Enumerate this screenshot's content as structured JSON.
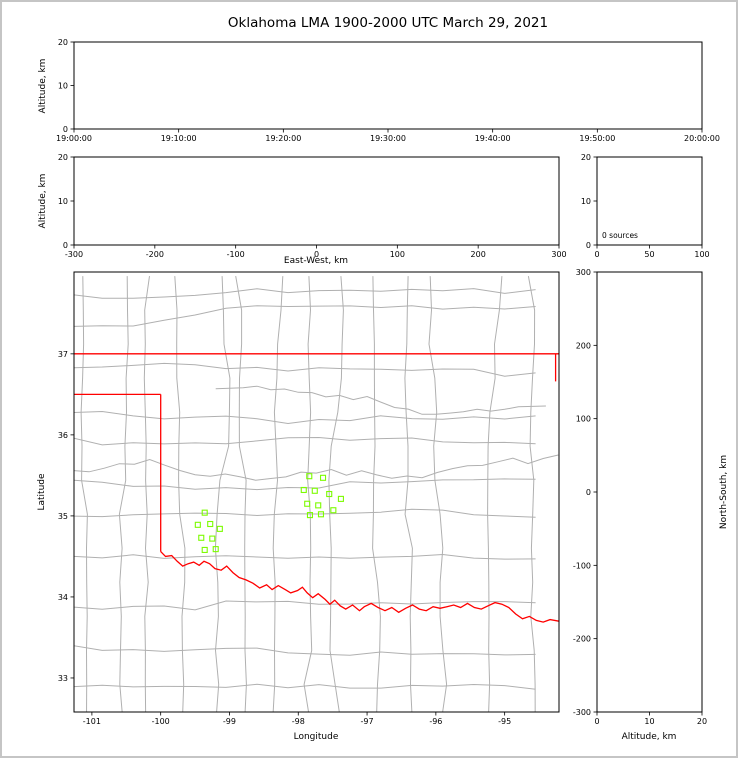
{
  "title": "Oklahoma LMA 1900-2000 UTC March 29, 2021",
  "colors": {
    "state_border": "#ff0000",
    "county_lines": "#b0b0b0",
    "station_marker": "#7cfc00",
    "axes": "#000000",
    "background": "#ffffff",
    "frame": "#c5c5c5"
  },
  "chart_data": [
    {
      "type": "scatter",
      "id": "time_altitude",
      "ylabel": "Altitude, km",
      "ylim": [
        0,
        20
      ],
      "yticks": [
        0,
        10,
        20
      ],
      "xticks_labels": [
        "19:00:00",
        "19:10:00",
        "19:20:00",
        "19:30:00",
        "19:40:00",
        "19:50:00",
        "20:00:00"
      ],
      "points": []
    },
    {
      "type": "scatter",
      "id": "eastwest_altitude",
      "xlabel": "East-West, km",
      "ylabel": "Altitude, km",
      "xlim": [
        -300,
        300
      ],
      "xticks": [
        -300,
        -200,
        -100,
        0,
        100,
        200,
        300
      ],
      "ylim": [
        0,
        20
      ],
      "yticks": [
        0,
        10,
        20
      ],
      "points": []
    },
    {
      "type": "histogram",
      "id": "altitude_histogram",
      "annotation": "0 sources",
      "xlim": [
        0,
        100
      ],
      "xticks": [
        0,
        50,
        100
      ],
      "ylim": [
        0,
        20
      ],
      "yticks": [
        0,
        10,
        20
      ],
      "values": []
    },
    {
      "type": "scatter",
      "id": "plan_view_map",
      "xlabel": "Longitude",
      "ylabel": "Latitude",
      "xlim": [
        -101.26,
        -94.21
      ],
      "xticks": [
        -101,
        -100,
        -99,
        -98,
        -97,
        -96,
        -95
      ],
      "ylim": [
        32.58,
        38.01
      ],
      "yticks": [
        33,
        34,
        35,
        36,
        37
      ],
      "stations_lonlat": [
        [
          -97.84,
          35.49
        ],
        [
          -97.64,
          35.47
        ],
        [
          -97.92,
          35.32
        ],
        [
          -97.76,
          35.31
        ],
        [
          -97.55,
          35.27
        ],
        [
          -97.38,
          35.21
        ],
        [
          -97.87,
          35.15
        ],
        [
          -97.71,
          35.13
        ],
        [
          -97.83,
          35.01
        ],
        [
          -97.67,
          35.02
        ],
        [
          -97.49,
          35.07
        ],
        [
          -99.36,
          35.04
        ],
        [
          -99.46,
          34.89
        ],
        [
          -99.28,
          34.9
        ],
        [
          -99.14,
          34.84
        ],
        [
          -99.41,
          34.73
        ],
        [
          -99.25,
          34.72
        ],
        [
          -99.36,
          34.58
        ],
        [
          -99.2,
          34.59
        ]
      ],
      "state_border_segments": [
        [
          [
            -101.26,
            37.0
          ],
          [
            -94.21,
            37.0
          ]
        ],
        [
          [
            -94.26,
            37.0
          ],
          [
            -94.26,
            36.66
          ]
        ],
        [
          [
            -101.26,
            36.5
          ],
          [
            -100.0,
            36.5
          ]
        ],
        [
          [
            -100.0,
            36.5
          ],
          [
            -100.0,
            34.56
          ]
        ],
        [
          [
            -100.0,
            34.56
          ],
          [
            -99.93,
            34.5
          ],
          [
            -99.84,
            34.51
          ],
          [
            -99.76,
            34.44
          ],
          [
            -99.68,
            34.38
          ],
          [
            -99.6,
            34.41
          ],
          [
            -99.52,
            34.43
          ],
          [
            -99.44,
            34.39
          ],
          [
            -99.37,
            34.44
          ],
          [
            -99.29,
            34.41
          ],
          [
            -99.21,
            34.35
          ],
          [
            -99.12,
            34.33
          ],
          [
            -99.04,
            34.38
          ],
          [
            -98.95,
            34.3
          ],
          [
            -98.86,
            34.24
          ],
          [
            -98.76,
            34.21
          ],
          [
            -98.66,
            34.17
          ],
          [
            -98.56,
            34.11
          ],
          [
            -98.46,
            34.15
          ],
          [
            -98.38,
            34.09
          ],
          [
            -98.29,
            34.14
          ],
          [
            -98.19,
            34.09
          ],
          [
            -98.11,
            34.05
          ],
          [
            -98.01,
            34.08
          ],
          [
            -97.94,
            34.12
          ],
          [
            -97.87,
            34.05
          ],
          [
            -97.79,
            33.99
          ],
          [
            -97.71,
            34.04
          ],
          [
            -97.61,
            33.97
          ],
          [
            -97.54,
            33.91
          ],
          [
            -97.47,
            33.96
          ],
          [
            -97.39,
            33.89
          ],
          [
            -97.31,
            33.85
          ],
          [
            -97.21,
            33.9
          ],
          [
            -97.11,
            33.83
          ],
          [
            -97.04,
            33.88
          ],
          [
            -96.94,
            33.92
          ],
          [
            -96.84,
            33.87
          ],
          [
            -96.74,
            33.83
          ],
          [
            -96.64,
            33.87
          ],
          [
            -96.54,
            33.81
          ],
          [
            -96.44,
            33.86
          ],
          [
            -96.34,
            33.9
          ],
          [
            -96.24,
            33.85
          ],
          [
            -96.14,
            33.83
          ],
          [
            -96.04,
            33.88
          ],
          [
            -95.94,
            33.86
          ],
          [
            -95.84,
            33.88
          ],
          [
            -95.74,
            33.9
          ],
          [
            -95.64,
            33.87
          ],
          [
            -95.54,
            33.92
          ],
          [
            -95.44,
            33.87
          ],
          [
            -95.34,
            33.85
          ],
          [
            -95.24,
            33.89
          ],
          [
            -95.14,
            33.93
          ],
          [
            -95.04,
            33.91
          ],
          [
            -94.94,
            33.87
          ],
          [
            -94.84,
            33.79
          ],
          [
            -94.74,
            33.73
          ],
          [
            -94.64,
            33.76
          ],
          [
            -94.54,
            33.71
          ],
          [
            -94.44,
            33.69
          ],
          [
            -94.34,
            33.72
          ],
          [
            -94.21,
            33.7
          ]
        ]
      ]
    },
    {
      "type": "scatter",
      "id": "northsouth_altitude",
      "xlabel": "Altitude, km",
      "ylabel": "North-South, km",
      "xlim": [
        0,
        20
      ],
      "xticks": [
        0,
        10,
        20
      ],
      "ylim": [
        -300,
        300
      ],
      "yticks": [
        -300,
        -200,
        -100,
        0,
        100,
        200,
        300
      ],
      "points": []
    }
  ]
}
